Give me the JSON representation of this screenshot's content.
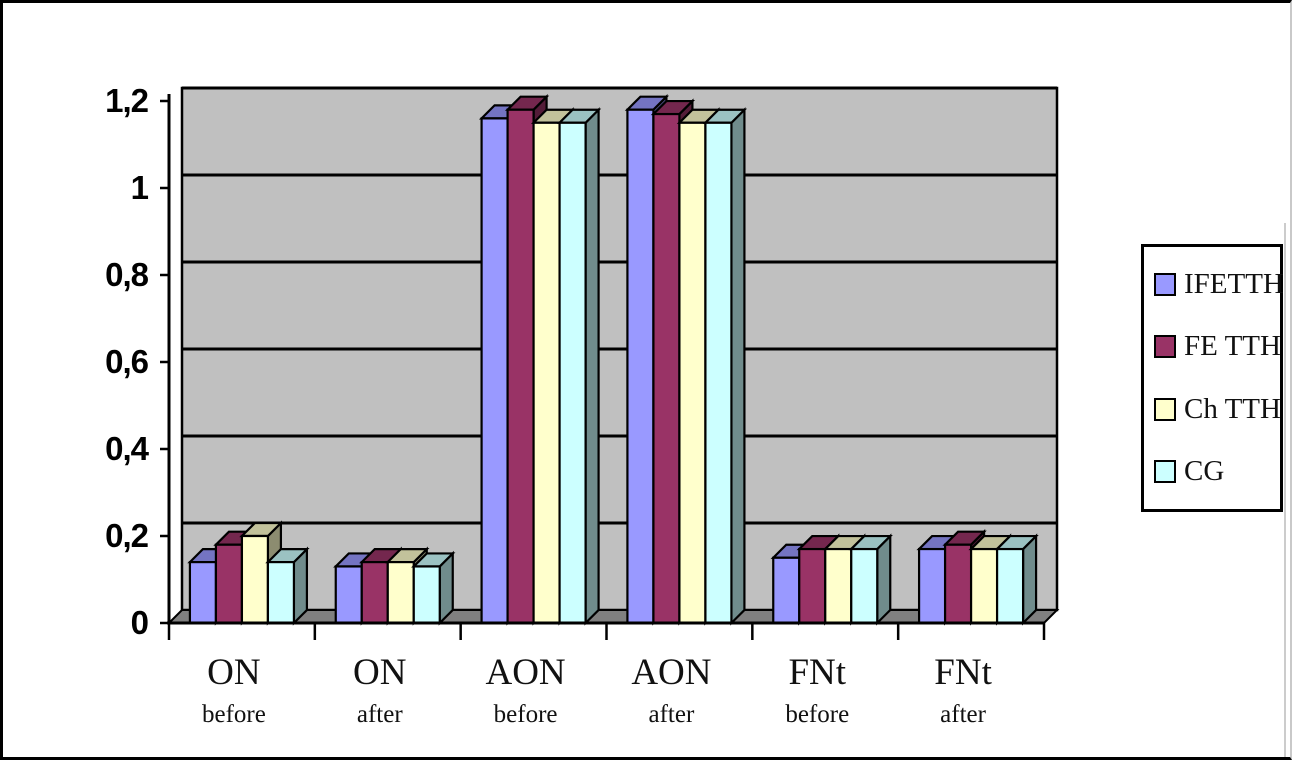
{
  "page": {
    "background_color": "#FFFFFF",
    "frame_border_color": "#000000"
  },
  "chart_data": {
    "type": "bar",
    "style": "3d-clustered",
    "title": "",
    "xlabel": "",
    "ylabel": "",
    "categories": [
      {
        "label": "ON",
        "sublabel": "before"
      },
      {
        "label": "ON",
        "sublabel": "after"
      },
      {
        "label": "AON",
        "sublabel": "before"
      },
      {
        "label": "AON",
        "sublabel": "after"
      },
      {
        "label": "FNt",
        "sublabel": "before"
      },
      {
        "label": "FNt",
        "sublabel": "after"
      }
    ],
    "series": [
      {
        "name": "IFETTH",
        "color": "#9999FF",
        "values": [
          0.14,
          0.13,
          1.16,
          1.18,
          0.15,
          0.17
        ]
      },
      {
        "name": "FE TTH",
        "color": "#993366",
        "values": [
          0.18,
          0.14,
          1.18,
          1.17,
          0.17,
          0.18
        ]
      },
      {
        "name": "Ch TTH",
        "color": "#FFFFCC",
        "values": [
          0.2,
          0.14,
          1.15,
          1.15,
          0.17,
          0.17
        ]
      },
      {
        "name": "CG",
        "color": "#CCFFFF",
        "values": [
          0.14,
          0.13,
          1.15,
          1.15,
          0.17,
          0.17
        ]
      }
    ],
    "y_axis": {
      "min": 0,
      "max": 1.2,
      "step": 0.2,
      "decimal_separator": ",",
      "tick_labels": [
        "0",
        "0,2",
        "0,4",
        "0,6",
        "0,8",
        "1",
        "1,2"
      ]
    },
    "legend": {
      "position": "right",
      "entries": [
        "IFETTH",
        "FE TTH",
        "Ch TTH",
        "CG"
      ]
    },
    "plot": {
      "grid": true,
      "wall_color": "#C0C0C0",
      "floor_color": "#808080",
      "gridline_color": "#000000",
      "axis_color": "#000000",
      "legend_background": "#FFFFFF"
    }
  }
}
